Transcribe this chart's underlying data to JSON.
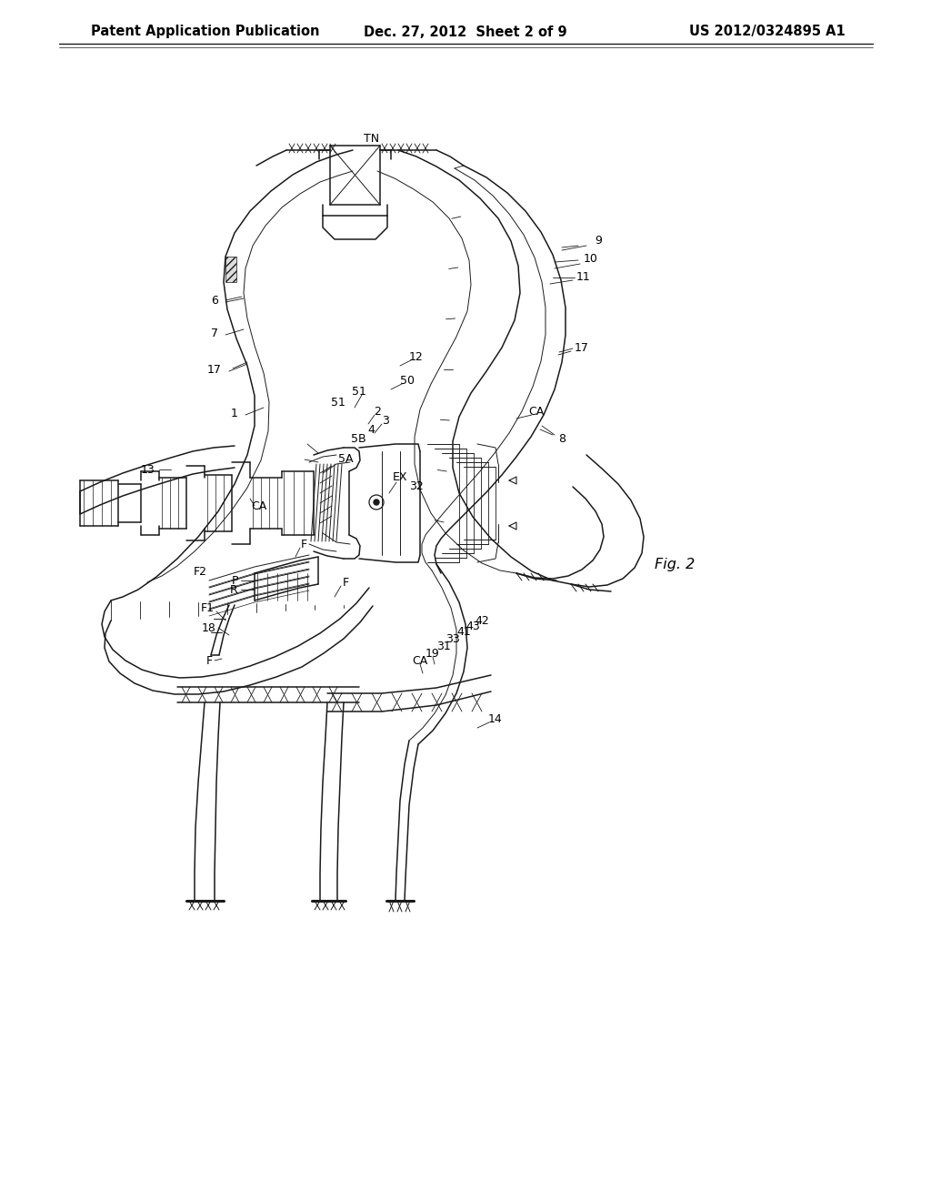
{
  "bg_color": "#ffffff",
  "line_color": "#1a1a1a",
  "header_left": "Patent Application Publication",
  "header_center": "Dec. 27, 2012  Sheet 2 of 9",
  "header_right": "US 2012/0324895 A1",
  "fig_label": "Fig. 2",
  "title_fontsize": 10.5,
  "label_fontsize": 9.0,
  "fig_label_fontsize": 11.5
}
